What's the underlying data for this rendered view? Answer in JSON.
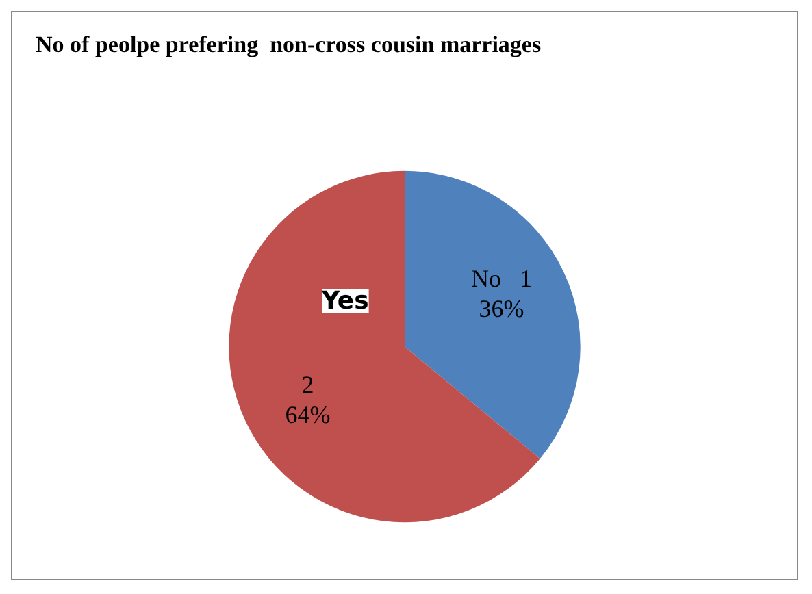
{
  "chart_data": {
    "type": "pie",
    "title": "No of peolpe prefering  non-cross cousin marriages",
    "categories": [
      "No",
      "Yes"
    ],
    "values": [
      36,
      64
    ],
    "colors": [
      "#4f81bd",
      "#c0504d"
    ],
    "value_labels": [
      "1\n36%",
      "2\n64%"
    ],
    "legend": false
  }
}
